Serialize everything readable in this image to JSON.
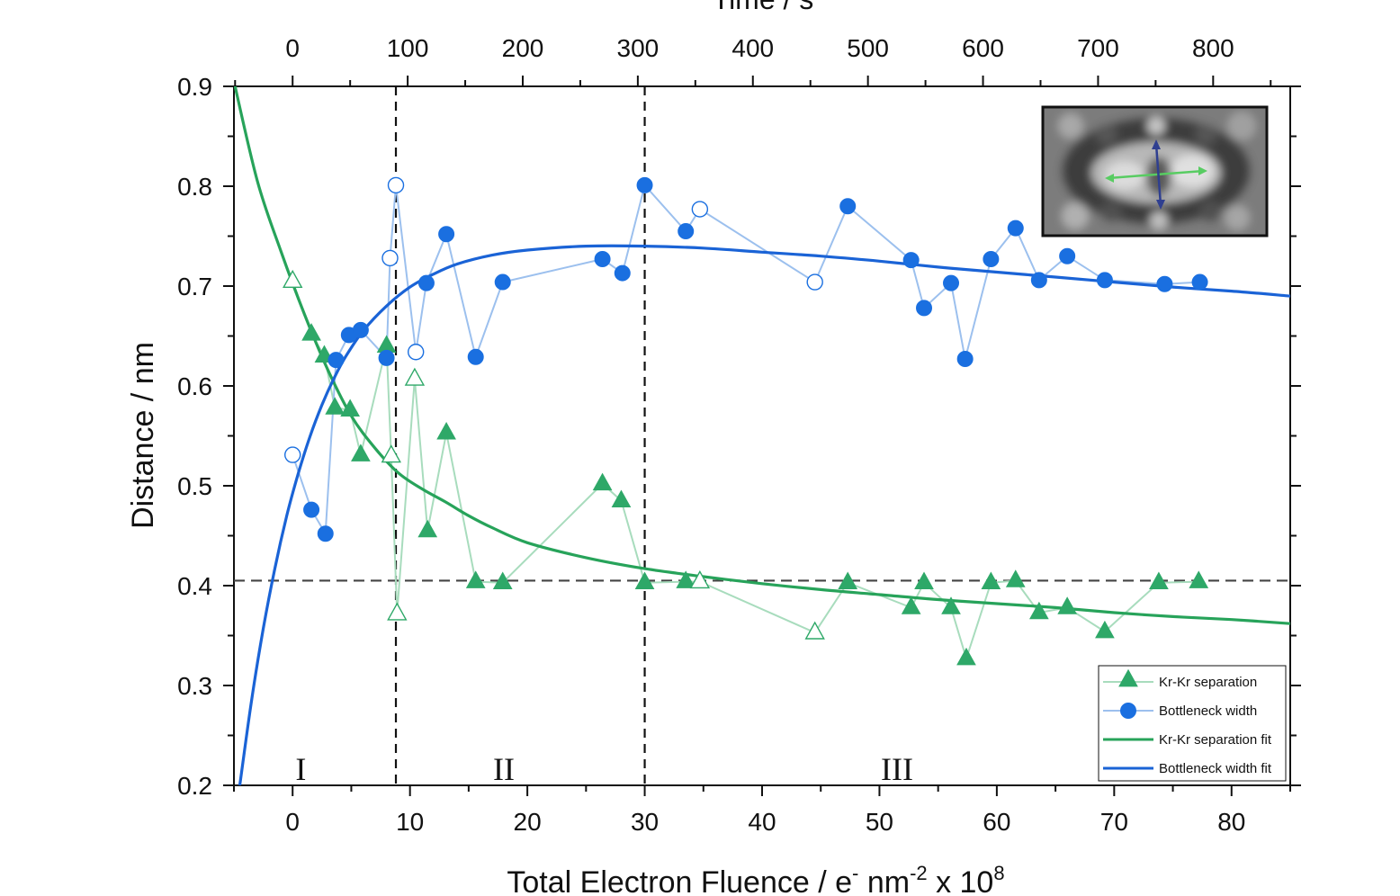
{
  "chart_data": {
    "type": "scatter",
    "xlabel": {
      "main": "Total Electron Fluence / e",
      "sup1": "-",
      "mid": " nm",
      "sup2": "-2",
      "tail": " x 10",
      "sup3": "8"
    },
    "ylabel": "Distance / nm",
    "x2label": "Time / s",
    "xlim": [
      -5,
      85
    ],
    "ylim": [
      0.2,
      0.9
    ],
    "x_ticks": [
      0,
      10,
      20,
      30,
      40,
      50,
      60,
      70,
      80
    ],
    "y_ticks": [
      0.2,
      0.3,
      0.4,
      0.5,
      0.6,
      0.7,
      0.8,
      0.9
    ],
    "y_tick_labels": [
      "0.2",
      "0.3",
      "0.4",
      "0.5",
      "0.6",
      "0.7",
      "0.8",
      "0.9"
    ],
    "x2_ticks": [
      0,
      100,
      200,
      300,
      400,
      500,
      600,
      700,
      800
    ],
    "x2_per_x": 10.2,
    "grid": false,
    "legend_placement": "bottom-right",
    "regions": [
      {
        "label": "I",
        "x": 0.7
      },
      {
        "label": "II",
        "x": 18.0
      },
      {
        "label": "III",
        "x": 51.5
      }
    ],
    "vlines": [
      8.8,
      30.0
    ],
    "hline": 0.405,
    "series": [
      {
        "name": "Kr-Kr separation",
        "color": "#2ea868",
        "line_color": "#a8dcbd",
        "marker": "triangle",
        "points": [
          {
            "x": 0.0,
            "y": 0.705,
            "open": true
          },
          {
            "x": 1.6,
            "y": 0.652,
            "open": false
          },
          {
            "x": 2.7,
            "y": 0.63,
            "open": false
          },
          {
            "x": 3.6,
            "y": 0.578,
            "open": false
          },
          {
            "x": 4.9,
            "y": 0.576,
            "open": false
          },
          {
            "x": 5.8,
            "y": 0.531,
            "open": false
          },
          {
            "x": 8.0,
            "y": 0.64,
            "open": false
          },
          {
            "x": 8.4,
            "y": 0.53,
            "open": true
          },
          {
            "x": 8.9,
            "y": 0.372,
            "open": true
          },
          {
            "x": 10.4,
            "y": 0.607,
            "open": true
          },
          {
            "x": 11.5,
            "y": 0.455,
            "open": false
          },
          {
            "x": 13.1,
            "y": 0.553,
            "open": false
          },
          {
            "x": 15.6,
            "y": 0.404,
            "open": false
          },
          {
            "x": 17.9,
            "y": 0.403,
            "open": false
          },
          {
            "x": 26.4,
            "y": 0.502,
            "open": false
          },
          {
            "x": 28.0,
            "y": 0.485,
            "open": false
          },
          {
            "x": 30.0,
            "y": 0.403,
            "open": false
          },
          {
            "x": 33.5,
            "y": 0.404,
            "open": false
          },
          {
            "x": 34.7,
            "y": 0.404,
            "open": true
          },
          {
            "x": 44.5,
            "y": 0.353,
            "open": true
          },
          {
            "x": 47.3,
            "y": 0.403,
            "open": false
          },
          {
            "x": 52.7,
            "y": 0.378,
            "open": false
          },
          {
            "x": 53.8,
            "y": 0.403,
            "open": false
          },
          {
            "x": 56.1,
            "y": 0.378,
            "open": false
          },
          {
            "x": 57.4,
            "y": 0.327,
            "open": false
          },
          {
            "x": 59.5,
            "y": 0.403,
            "open": false
          },
          {
            "x": 61.6,
            "y": 0.405,
            "open": false
          },
          {
            "x": 63.6,
            "y": 0.373,
            "open": false
          },
          {
            "x": 66.0,
            "y": 0.378,
            "open": false
          },
          {
            "x": 69.2,
            "y": 0.354,
            "open": false
          },
          {
            "x": 73.8,
            "y": 0.403,
            "open": false
          },
          {
            "x": 77.2,
            "y": 0.404,
            "open": false
          }
        ]
      },
      {
        "name": "Bottleneck width",
        "color": "#1a6fe0",
        "line_color": "#9cc0ee",
        "marker": "circle",
        "points": [
          {
            "x": 0.0,
            "y": 0.531,
            "open": true
          },
          {
            "x": 1.6,
            "y": 0.476,
            "open": false
          },
          {
            "x": 2.8,
            "y": 0.452,
            "open": false
          },
          {
            "x": 3.7,
            "y": 0.626,
            "open": false
          },
          {
            "x": 4.8,
            "y": 0.651,
            "open": false
          },
          {
            "x": 5.8,
            "y": 0.656,
            "open": false
          },
          {
            "x": 8.0,
            "y": 0.628,
            "open": false
          },
          {
            "x": 8.3,
            "y": 0.728,
            "open": true
          },
          {
            "x": 8.8,
            "y": 0.801,
            "open": true
          },
          {
            "x": 10.5,
            "y": 0.634,
            "open": true
          },
          {
            "x": 11.4,
            "y": 0.703,
            "open": false
          },
          {
            "x": 13.1,
            "y": 0.752,
            "open": false
          },
          {
            "x": 15.6,
            "y": 0.629,
            "open": false
          },
          {
            "x": 17.9,
            "y": 0.704,
            "open": false
          },
          {
            "x": 26.4,
            "y": 0.727,
            "open": false
          },
          {
            "x": 28.1,
            "y": 0.713,
            "open": false
          },
          {
            "x": 30.0,
            "y": 0.801,
            "open": false
          },
          {
            "x": 33.5,
            "y": 0.755,
            "open": false
          },
          {
            "x": 34.7,
            "y": 0.777,
            "open": true
          },
          {
            "x": 44.5,
            "y": 0.704,
            "open": true
          },
          {
            "x": 47.3,
            "y": 0.78,
            "open": false
          },
          {
            "x": 52.7,
            "y": 0.726,
            "open": false
          },
          {
            "x": 53.8,
            "y": 0.678,
            "open": false
          },
          {
            "x": 56.1,
            "y": 0.703,
            "open": false
          },
          {
            "x": 57.3,
            "y": 0.627,
            "open": false
          },
          {
            "x": 59.5,
            "y": 0.727,
            "open": false
          },
          {
            "x": 61.6,
            "y": 0.758,
            "open": false
          },
          {
            "x": 63.6,
            "y": 0.706,
            "open": false
          },
          {
            "x": 66.0,
            "y": 0.73,
            "open": false
          },
          {
            "x": 69.2,
            "y": 0.706,
            "open": false
          },
          {
            "x": 74.3,
            "y": 0.702,
            "open": false
          },
          {
            "x": 77.3,
            "y": 0.704,
            "open": false
          }
        ]
      },
      {
        "name": "Kr-Kr separation fit",
        "color": "#27a35a",
        "style": "line",
        "points": [
          {
            "x": -5.0,
            "y": 0.905
          },
          {
            "x": -3.0,
            "y": 0.805
          },
          {
            "x": -1.0,
            "y": 0.735
          },
          {
            "x": 1.0,
            "y": 0.672
          },
          {
            "x": 3.0,
            "y": 0.616
          },
          {
            "x": 5.0,
            "y": 0.57
          },
          {
            "x": 7.0,
            "y": 0.538
          },
          {
            "x": 9.0,
            "y": 0.513
          },
          {
            "x": 11.0,
            "y": 0.497
          },
          {
            "x": 13.0,
            "y": 0.484
          },
          {
            "x": 15.0,
            "y": 0.47
          },
          {
            "x": 17.0,
            "y": 0.458
          },
          {
            "x": 20.0,
            "y": 0.443
          },
          {
            "x": 25.0,
            "y": 0.428
          },
          {
            "x": 30.0,
            "y": 0.417
          },
          {
            "x": 35.0,
            "y": 0.409
          },
          {
            "x": 40.0,
            "y": 0.402
          },
          {
            "x": 45.0,
            "y": 0.396
          },
          {
            "x": 50.0,
            "y": 0.391
          },
          {
            "x": 55.0,
            "y": 0.386
          },
          {
            "x": 60.0,
            "y": 0.382
          },
          {
            "x": 65.0,
            "y": 0.378
          },
          {
            "x": 70.0,
            "y": 0.373
          },
          {
            "x": 75.0,
            "y": 0.369
          },
          {
            "x": 80.0,
            "y": 0.366
          },
          {
            "x": 85.0,
            "y": 0.362
          }
        ]
      },
      {
        "name": "Bottleneck width fit",
        "color": "#1a63d6",
        "style": "line",
        "points": [
          {
            "x": -4.5,
            "y": 0.2
          },
          {
            "x": -3.5,
            "y": 0.285
          },
          {
            "x": -2.5,
            "y": 0.357
          },
          {
            "x": -1.5,
            "y": 0.418
          },
          {
            "x": -0.5,
            "y": 0.47
          },
          {
            "x": 0.5,
            "y": 0.513
          },
          {
            "x": 1.5,
            "y": 0.55
          },
          {
            "x": 2.5,
            "y": 0.581
          },
          {
            "x": 3.5,
            "y": 0.607
          },
          {
            "x": 4.5,
            "y": 0.629
          },
          {
            "x": 6.0,
            "y": 0.655
          },
          {
            "x": 8.0,
            "y": 0.68
          },
          {
            "x": 10.0,
            "y": 0.699
          },
          {
            "x": 12.0,
            "y": 0.712
          },
          {
            "x": 14.0,
            "y": 0.722
          },
          {
            "x": 17.0,
            "y": 0.731
          },
          {
            "x": 20.0,
            "y": 0.736
          },
          {
            "x": 25.0,
            "y": 0.74
          },
          {
            "x": 30.0,
            "y": 0.74
          },
          {
            "x": 35.0,
            "y": 0.738
          },
          {
            "x": 40.0,
            "y": 0.734
          },
          {
            "x": 45.0,
            "y": 0.73
          },
          {
            "x": 50.0,
            "y": 0.725
          },
          {
            "x": 55.0,
            "y": 0.719
          },
          {
            "x": 60.0,
            "y": 0.714
          },
          {
            "x": 65.0,
            "y": 0.709
          },
          {
            "x": 70.0,
            "y": 0.704
          },
          {
            "x": 75.0,
            "y": 0.699
          },
          {
            "x": 80.0,
            "y": 0.695
          },
          {
            "x": 85.0,
            "y": 0.69
          }
        ]
      }
    ]
  },
  "inset": {
    "description_icon": "molecular-image-inset",
    "arrow_colors": {
      "horizontal": "#58cc62",
      "vertical": "#2f3f90"
    }
  }
}
